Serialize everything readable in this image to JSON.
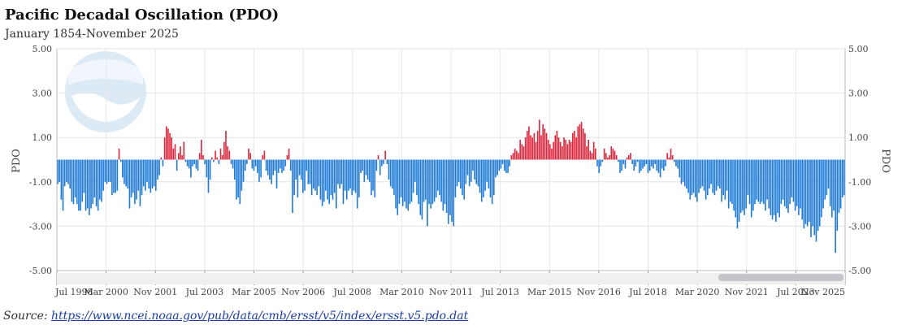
{
  "chart_data": {
    "type": "bar",
    "title": "Pacific Decadal Oscillation (PDO)",
    "subtitle": "January 1854-November 2025",
    "ylabel": "PDO",
    "ylim": [
      -5,
      5
    ],
    "yticks": [
      "5.00",
      "3.00",
      "1.00",
      "-1.00",
      "-3.00",
      "-5.00"
    ],
    "ytick_values": [
      5,
      3,
      1,
      -1,
      -3,
      -5
    ],
    "xticks": [
      "Jul 1998",
      "Mar 2000",
      "Nov 2001",
      "Jul 2003",
      "Mar 2005",
      "Nov 2006",
      "Jul 2008",
      "Mar 2010",
      "Nov 2011",
      "Jul 2013",
      "Mar 2015",
      "Nov 2016",
      "Jul 2018",
      "Mar 2020",
      "Nov 2021",
      "Jul 2023",
      "Nov 2025"
    ],
    "x_start": "Jul 1998",
    "x_end": "Nov 2025",
    "grid": true,
    "positive_color": "#e0243a",
    "negative_color": "#1e7ad6",
    "values": [
      -1.1,
      -1.0,
      -1.8,
      -2.3,
      -1.2,
      -1.0,
      -1.1,
      -1.3,
      -1.9,
      -2.0,
      -1.7,
      -2.0,
      -2.3,
      -2.3,
      -1.9,
      -1.5,
      -2.3,
      -2.2,
      -2.5,
      -2.2,
      -2.0,
      -1.7,
      -2.1,
      -2.3,
      -1.8,
      -1.9,
      -1.4,
      -1.0,
      -1.1,
      -1.0,
      -1.0,
      -1.6,
      -1.5,
      -1.5,
      -1.4,
      0.5,
      -0.1,
      -0.8,
      -1.1,
      -1.2,
      -1.3,
      -2.2,
      -1.7,
      -1.5,
      -2.0,
      -1.8,
      -1.4,
      -2.1,
      -1.6,
      -1.2,
      -1.4,
      -1.0,
      -1.3,
      -1.5,
      -1.3,
      -1.2,
      -1.4,
      -0.9,
      -0.7,
      0.1,
      -0.3,
      1.0,
      1.5,
      1.4,
      1.2,
      1.0,
      0.5,
      0.7,
      -0.5,
      0.3,
      0.6,
      0.2,
      0.8,
      -0.1,
      -0.3,
      -0.4,
      -0.8,
      -0.3,
      -0.2,
      -0.4,
      -0.5,
      0.3,
      0.9,
      0.2,
      -0.2,
      -0.8,
      -1.5,
      -0.9,
      0.1,
      -0.1,
      0.4,
      0.1,
      -0.2,
      0.5,
      0.2,
      0.8,
      1.3,
      0.6,
      0.4,
      -0.2,
      -0.4,
      -0.9,
      -1.8,
      -1.7,
      -2.0,
      -1.4,
      -1.0,
      -0.5,
      -0.2,
      0.5,
      0.3,
      -0.4,
      -0.5,
      -0.3,
      -0.6,
      -1.0,
      -0.8,
      0.2,
      0.4,
      -0.5,
      -0.7,
      -0.9,
      -1.1,
      -0.7,
      -0.5,
      -1.3,
      -0.6,
      -0.4,
      -0.6,
      -0.5,
      -0.3,
      0.2,
      0.5,
      -0.5,
      -2.4,
      -1.6,
      -0.9,
      -1.7,
      -0.7,
      -0.9,
      -1.5,
      -1.4,
      -0.5,
      -1.1,
      -1.1,
      -1.6,
      -1.3,
      -1.4,
      -1.6,
      -1.2,
      -1.8,
      -2.1,
      -1.9,
      -1.4,
      -1.8,
      -2.0,
      -1.6,
      -1.8,
      -1.5,
      -2.2,
      -1.1,
      -1.3,
      -1.1,
      -2.0,
      -1.4,
      -1.8,
      -1.4,
      -1.3,
      -1.6,
      -1.4,
      -1.5,
      -2.2,
      -1.7,
      -0.6,
      -0.5,
      -1.0,
      -0.7,
      -0.9,
      -1.0,
      -1.6,
      -1.4,
      -1.7,
      -0.5,
      0.2,
      -0.7,
      -0.3,
      -0.2,
      0.4,
      -0.2,
      -0.9,
      -1.2,
      -1.3,
      -1.6,
      -2.2,
      -2.5,
      -2.0,
      -1.7,
      -2.1,
      -1.9,
      -2.2,
      -2.3,
      -2.0,
      -1.9,
      -1.5,
      -1.0,
      -1.6,
      -2.0,
      -2.5,
      -2.7,
      -1.9,
      -1.8,
      -3.0,
      -2.0,
      -2.2,
      -2.0,
      -1.9,
      -1.7,
      -1.4,
      -1.6,
      -1.9,
      -2.3,
      -2.0,
      -2.4,
      -2.9,
      -2.5,
      -2.8,
      -3.0,
      -1.7,
      -1.2,
      -1.0,
      -1.3,
      -1.6,
      -1.8,
      -1.1,
      -0.7,
      -1.2,
      -1.0,
      -0.5,
      -0.9,
      -1.1,
      -1.2,
      -1.5,
      -1.9,
      -1.7,
      -1.4,
      -1.0,
      -1.3,
      -1.7,
      -2.0,
      -1.6,
      -0.8,
      -0.7,
      -0.5,
      -0.4,
      -0.2,
      -0.5,
      -0.6,
      -0.6,
      -0.3,
      0.2,
      0.3,
      0.5,
      0.4,
      0.3,
      0.9,
      0.7,
      0.6,
      1.0,
      1.3,
      1.5,
      1.1,
      1.0,
      1.2,
      0.8,
      1.3,
      1.8,
      1.1,
      1.6,
      1.4,
      1.2,
      0.9,
      0.7,
      0.5,
      0.8,
      1.1,
      1.3,
      1.0,
      0.8,
      0.6,
      1.0,
      0.9,
      0.7,
      0.9,
      0.8,
      1.2,
      1.3,
      1.0,
      1.5,
      1.6,
      1.7,
      1.4,
      1.2,
      0.6,
      0.9,
      0.4,
      0.3,
      0.8,
      0.5,
      -0.3,
      -0.6,
      -0.3,
      -0.1,
      0.5,
      0.3,
      0.1,
      0.2,
      0.6,
      0.5,
      0.4,
      0.2,
      -0.1,
      -0.6,
      -0.5,
      -0.2,
      -0.4,
      0.1,
      0.2,
      0.3,
      -0.2,
      -0.5,
      -0.3,
      -0.1,
      -0.6,
      -0.5,
      -0.4,
      -0.3,
      -0.2,
      -0.6,
      -0.5,
      -0.3,
      -0.4,
      -0.2,
      -0.5,
      -0.6,
      -0.8,
      -0.4,
      -0.5,
      -0.3,
      0.3,
      0.1,
      0.5,
      0.2,
      -0.1,
      -0.3,
      -0.4,
      -0.8,
      -1.1,
      -1.0,
      -1.2,
      -1.3,
      -1.5,
      -1.8,
      -1.6,
      -1.5,
      -1.7,
      -1.9,
      -1.5,
      -1.3,
      -1.2,
      -1.4,
      -1.8,
      -1.6,
      -1.3,
      -1.1,
      -1.5,
      -1.6,
      -1.4,
      -1.2,
      -1.3,
      -1.9,
      -1.6,
      -1.8,
      -1.4,
      -2.2,
      -1.9,
      -2.0,
      -2.3,
      -2.6,
      -3.1,
      -2.8,
      -2.4,
      -2.3,
      -2.5,
      -2.2,
      -1.6,
      -2.0,
      -2.6,
      -2.3,
      -2.0,
      -1.8,
      -1.9,
      -2.0,
      -1.9,
      -2.0,
      -2.3,
      -1.8,
      -2.2,
      -2.5,
      -2.7,
      -2.5,
      -2.8,
      -2.4,
      -2.6,
      -2.0,
      -1.8,
      -2.1,
      -2.2,
      -2.4,
      -2.0,
      -1.7,
      -1.9,
      -2.3,
      -2.1,
      -2.5,
      -2.2,
      -2.7,
      -3.1,
      -2.9,
      -3.0,
      -2.8,
      -3.5,
      -3.0,
      -3.4,
      -3.7,
      -3.2,
      -3.0,
      -2.6,
      -2.2,
      -1.8,
      -1.6,
      -1.3,
      -2.1,
      -2.6,
      -2.3,
      -4.2,
      -3.2,
      -2.4,
      -2.2,
      -1.7,
      -1.6
    ]
  },
  "source": {
    "label": "Source:",
    "url": "https://www.ncei.noaa.gov/pub/data/cmb/ersst/v5/index/ersst.v5.pdo.dat"
  }
}
